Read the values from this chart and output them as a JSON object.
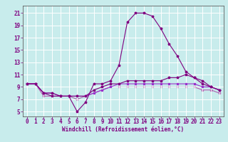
{
  "title": "",
  "xlabel": "Windchill (Refroidissement éolien,°C)",
  "background_color": "#c8ecec",
  "grid_color": "#ffffff",
  "line_color": "#800080",
  "x_ticks": [
    0,
    1,
    2,
    3,
    4,
    5,
    6,
    7,
    8,
    9,
    10,
    11,
    12,
    13,
    14,
    15,
    16,
    17,
    18,
    19,
    20,
    21,
    22,
    23
  ],
  "y_ticks": [
    5,
    7,
    9,
    11,
    13,
    15,
    17,
    19,
    21
  ],
  "xlim": [
    -0.5,
    23.5
  ],
  "ylim": [
    4.2,
    22.2
  ],
  "curve1_x": [
    0,
    1,
    2,
    3,
    4,
    5,
    6,
    7,
    8,
    9,
    10,
    11,
    12,
    13,
    14,
    15,
    16,
    17,
    18,
    19,
    20,
    21,
    22,
    23
  ],
  "curve1_y": [
    9.5,
    9.5,
    8.0,
    7.5,
    7.5,
    7.5,
    5.0,
    6.5,
    9.5,
    9.5,
    10.0,
    12.5,
    19.5,
    21.0,
    21.0,
    20.5,
    18.5,
    16.0,
    14.0,
    11.5,
    10.5,
    9.5,
    9.0,
    8.5
  ],
  "curve2_x": [
    0,
    1,
    2,
    3,
    4,
    5,
    6,
    7,
    8,
    9,
    10,
    11,
    12,
    13,
    14,
    15,
    16,
    17,
    18,
    19,
    20,
    21,
    22,
    23
  ],
  "curve2_y": [
    9.5,
    9.5,
    8.0,
    8.0,
    7.5,
    7.5,
    7.5,
    7.5,
    8.5,
    9.0,
    9.5,
    9.5,
    10.0,
    10.0,
    10.0,
    10.0,
    10.0,
    10.5,
    10.5,
    11.0,
    10.5,
    10.0,
    9.0,
    8.5
  ],
  "curve3_x": [
    0,
    1,
    2,
    3,
    4,
    5,
    6,
    7,
    8,
    9,
    10,
    11,
    12,
    13,
    14,
    15,
    16,
    17,
    18,
    19,
    20,
    21,
    22,
    23
  ],
  "curve3_y": [
    9.5,
    9.5,
    8.0,
    8.0,
    7.5,
    7.5,
    7.5,
    7.5,
    8.0,
    8.5,
    9.0,
    9.5,
    9.5,
    9.5,
    9.5,
    9.5,
    9.5,
    9.5,
    9.5,
    9.5,
    9.5,
    9.0,
    9.0,
    8.5
  ],
  "curve4_x": [
    0,
    1,
    2,
    3,
    4,
    5,
    6,
    7,
    8,
    9,
    10,
    11,
    12,
    13,
    14,
    15,
    16,
    17,
    18,
    19,
    20,
    21,
    22,
    23
  ],
  "curve4_y": [
    9.5,
    9.5,
    7.5,
    7.5,
    7.5,
    7.5,
    7.0,
    7.5,
    8.0,
    8.5,
    9.0,
    9.0,
    9.0,
    9.0,
    9.0,
    9.0,
    9.0,
    9.0,
    9.0,
    9.0,
    9.0,
    8.5,
    8.5,
    8.0
  ],
  "lc1": "#800080",
  "lc2": "#800080",
  "lc3": "#9932cc",
  "lc4": "#b060b0",
  "lw": 0.8,
  "ms": 2.5,
  "tick_fontsize": 5.5,
  "xlabel_fontsize": 5.5
}
